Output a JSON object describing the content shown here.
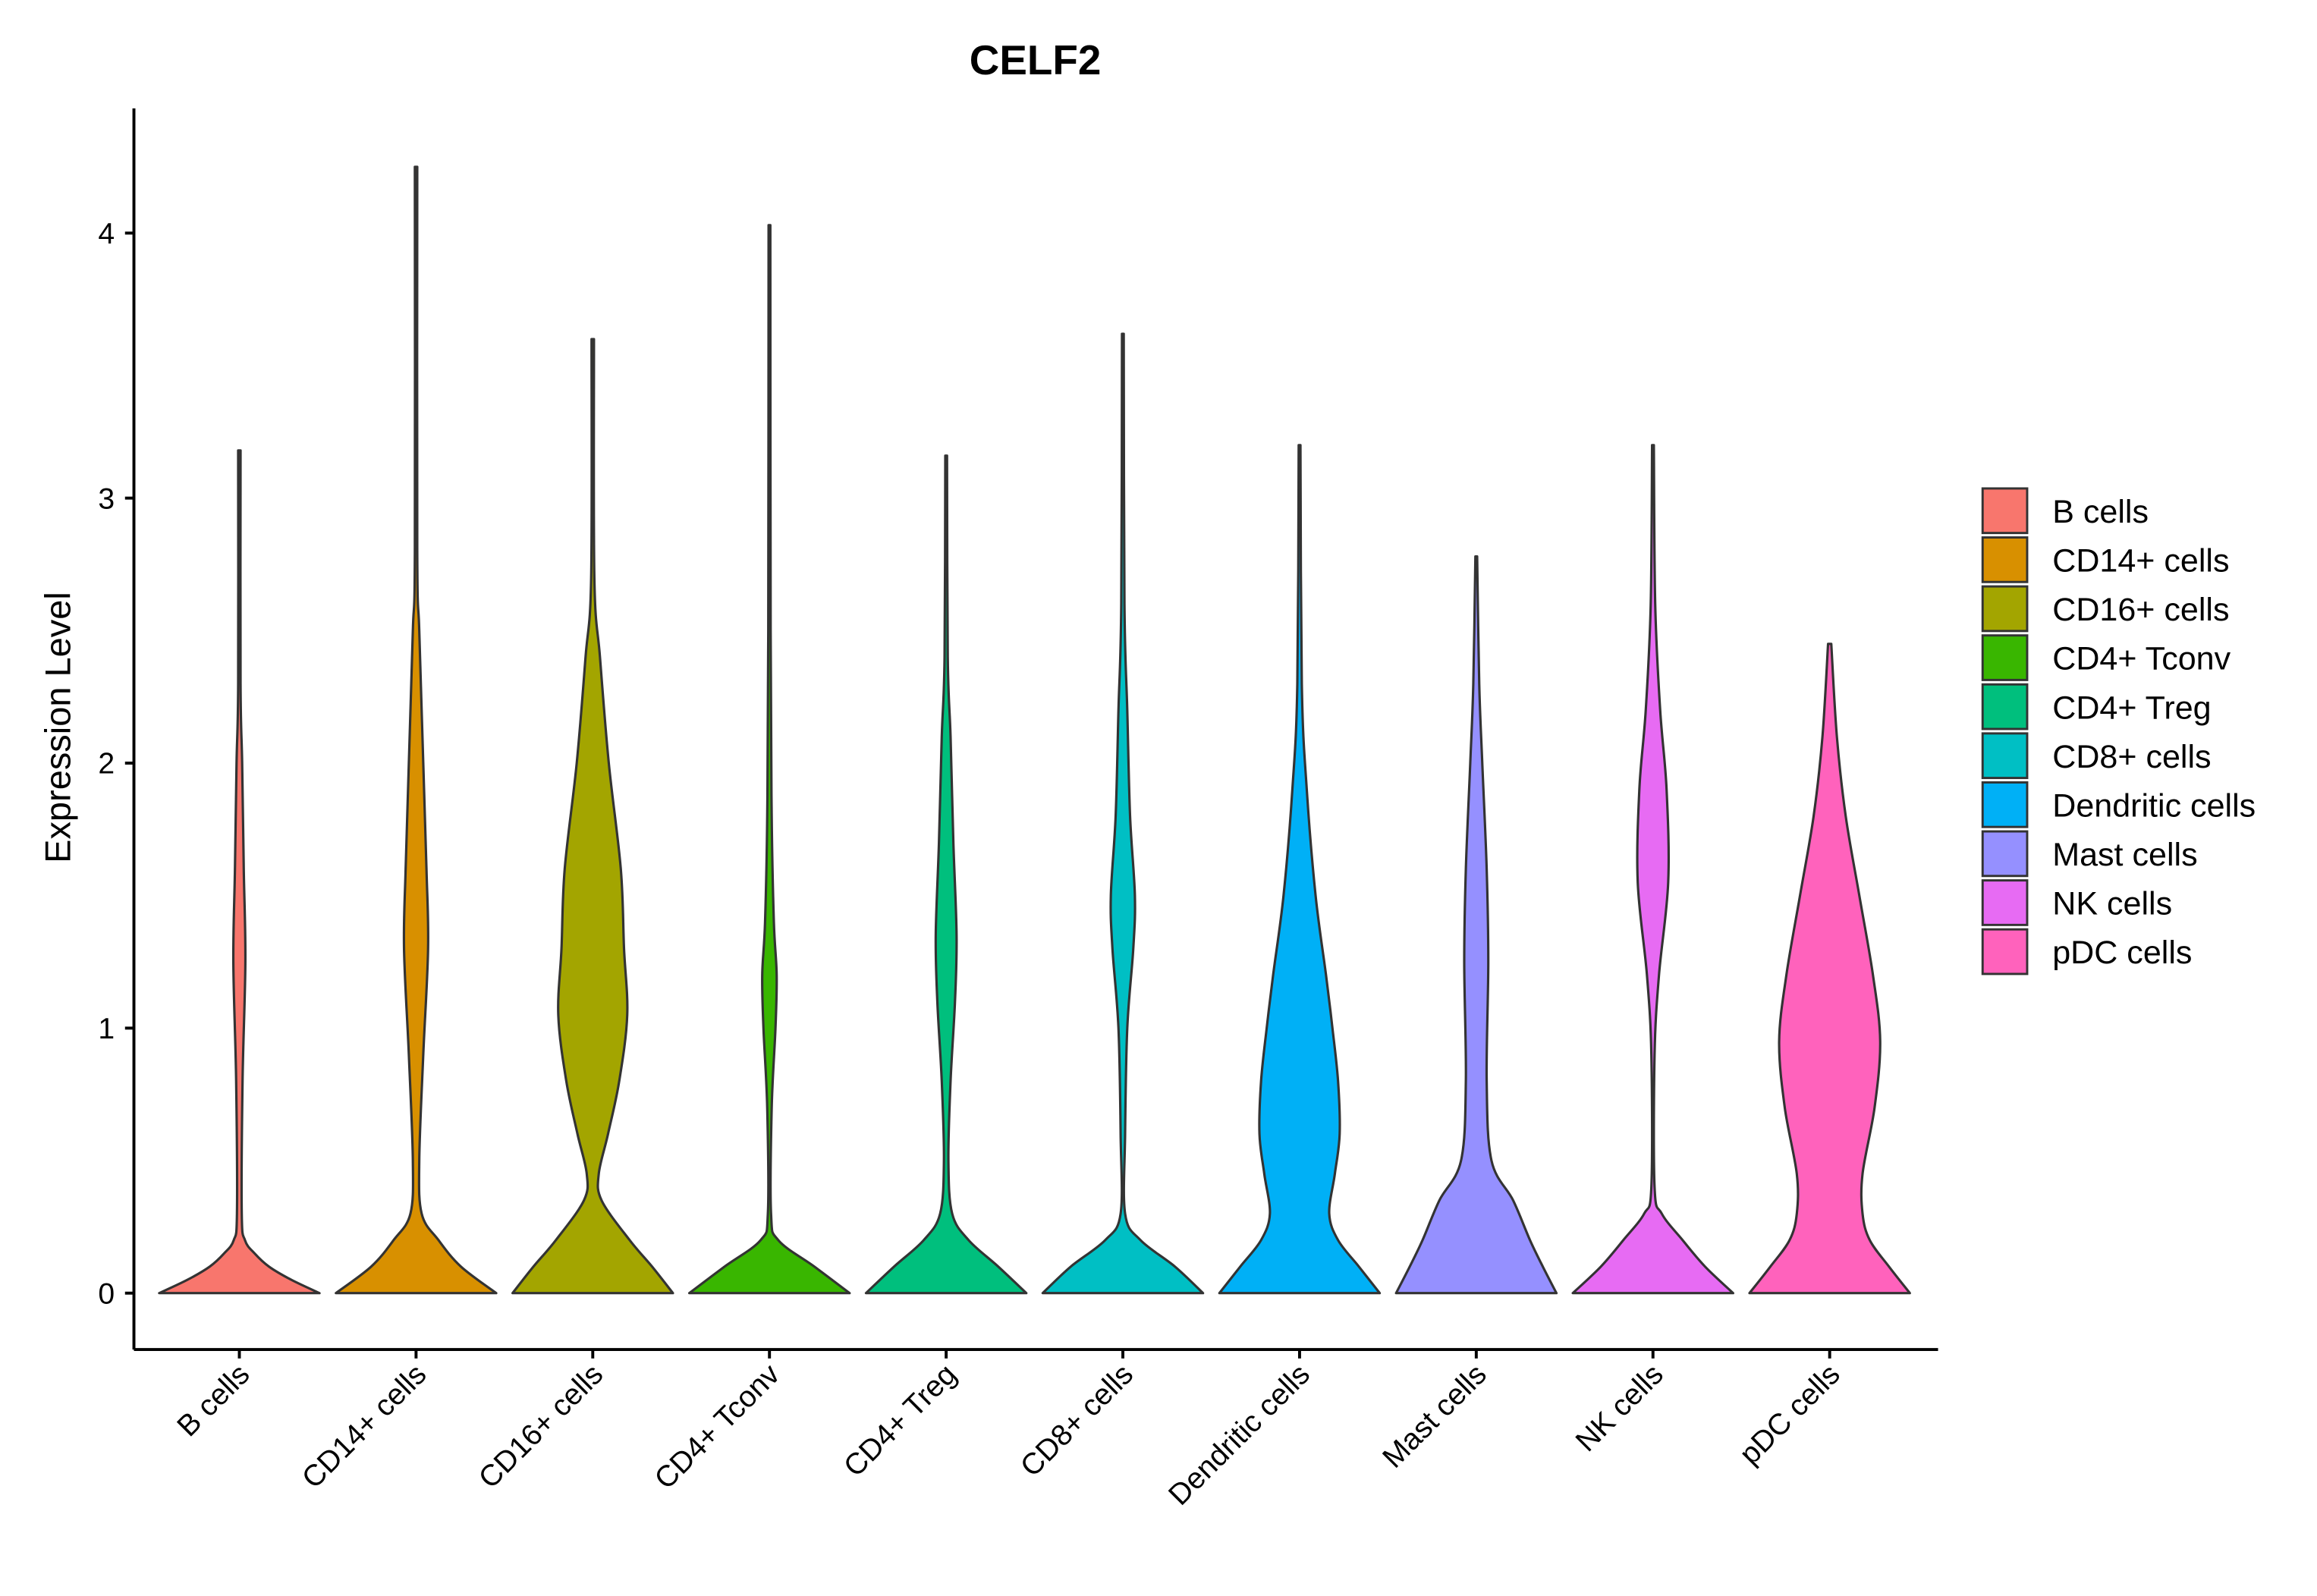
{
  "chart_data": {
    "type": "violin",
    "title": "CELF2",
    "xlabel": "",
    "ylabel": "Expression Level",
    "ylim": [
      -0.21,
      4.47
    ],
    "yticks": [
      0,
      1,
      2,
      3,
      4
    ],
    "ytick_labels": [
      "0",
      "1",
      "2",
      "3",
      "4"
    ],
    "legend_position": "right",
    "grid": false,
    "categories": [
      "B cells",
      "CD14+ cells",
      "CD16+ cells",
      "CD4+ Tconv",
      "CD4+ Treg",
      "CD8+ cells",
      "Dendritic cells",
      "Mast cells",
      "NK cells",
      "pDC cells"
    ],
    "colors": [
      "#F8766D",
      "#D89000",
      "#A3A500",
      "#39B600",
      "#00BF7D",
      "#00BFC4",
      "#00B0F6",
      "#9590FF",
      "#E76BF3",
      "#FF62BC"
    ],
    "series": [
      {
        "name": "B cells",
        "max": 3.18,
        "density": [
          [
            0,
            1
          ],
          [
            0.05,
            0.65
          ],
          [
            0.1,
            0.37
          ],
          [
            0.15,
            0.19
          ],
          [
            0.2,
            0.07
          ],
          [
            0.3,
            0.03
          ],
          [
            0.8,
            0.04
          ],
          [
            1.25,
            0.075
          ],
          [
            1.6,
            0.055
          ],
          [
            2.0,
            0.035
          ],
          [
            2.3,
            0.015
          ],
          [
            3.18,
            0.015
          ]
        ]
      },
      {
        "name": "CD14+ cells",
        "max": 4.25,
        "density": [
          [
            0,
            1
          ],
          [
            0.1,
            0.56
          ],
          [
            0.2,
            0.28
          ],
          [
            0.3,
            0.07
          ],
          [
            0.5,
            0.04
          ],
          [
            0.9,
            0.09
          ],
          [
            1.3,
            0.15
          ],
          [
            1.6,
            0.13
          ],
          [
            2.0,
            0.09
          ],
          [
            2.5,
            0.04
          ],
          [
            2.8,
            0.015
          ],
          [
            4.25,
            0.015
          ]
        ]
      },
      {
        "name": "CD16+ cells",
        "max": 3.6,
        "density": [
          [
            0,
            1
          ],
          [
            0.1,
            0.74
          ],
          [
            0.2,
            0.46
          ],
          [
            0.35,
            0.11
          ],
          [
            0.45,
            0.075
          ],
          [
            0.6,
            0.19
          ],
          [
            0.8,
            0.33
          ],
          [
            1.05,
            0.43
          ],
          [
            1.3,
            0.39
          ],
          [
            1.6,
            0.35
          ],
          [
            2.0,
            0.2
          ],
          [
            2.4,
            0.09
          ],
          [
            2.7,
            0.02
          ],
          [
            3.6,
            0.015
          ]
        ]
      },
      {
        "name": "CD4+ Tconv",
        "max": 4.03,
        "density": [
          [
            0,
            1
          ],
          [
            0.1,
            0.56
          ],
          [
            0.2,
            0.11
          ],
          [
            0.3,
            0.02
          ],
          [
            0.7,
            0.028
          ],
          [
            1.0,
            0.075
          ],
          [
            1.2,
            0.09
          ],
          [
            1.4,
            0.055
          ],
          [
            1.8,
            0.028
          ],
          [
            2.5,
            0.015
          ],
          [
            4.03,
            0.011
          ]
        ]
      },
      {
        "name": "CD4+ Treg",
        "max": 3.16,
        "density": [
          [
            0,
            1
          ],
          [
            0.1,
            0.65
          ],
          [
            0.2,
            0.28
          ],
          [
            0.3,
            0.075
          ],
          [
            0.5,
            0.028
          ],
          [
            0.8,
            0.055
          ],
          [
            1.1,
            0.11
          ],
          [
            1.35,
            0.13
          ],
          [
            1.7,
            0.09
          ],
          [
            2.1,
            0.055
          ],
          [
            2.4,
            0.02
          ],
          [
            3.16,
            0.011
          ]
        ]
      },
      {
        "name": "CD8+ cells",
        "max": 3.62,
        "density": [
          [
            0,
            1
          ],
          [
            0.1,
            0.65
          ],
          [
            0.2,
            0.22
          ],
          [
            0.3,
            0.028
          ],
          [
            0.6,
            0.028
          ],
          [
            1.0,
            0.055
          ],
          [
            1.3,
            0.13
          ],
          [
            1.5,
            0.15
          ],
          [
            1.8,
            0.09
          ],
          [
            2.2,
            0.055
          ],
          [
            2.6,
            0.02
          ],
          [
            3.62,
            0.011
          ]
        ]
      },
      {
        "name": "Dendritic cells",
        "max": 3.2,
        "density": [
          [
            0,
            1
          ],
          [
            0.1,
            0.74
          ],
          [
            0.2,
            0.48
          ],
          [
            0.3,
            0.37
          ],
          [
            0.45,
            0.44
          ],
          [
            0.6,
            0.5
          ],
          [
            0.8,
            0.48
          ],
          [
            1.0,
            0.41
          ],
          [
            1.2,
            0.33
          ],
          [
            1.5,
            0.2
          ],
          [
            1.9,
            0.09
          ],
          [
            2.3,
            0.028
          ],
          [
            3.2,
            0.011
          ]
        ]
      },
      {
        "name": "Mast cells",
        "max": 2.78,
        "density": [
          [
            0,
            1
          ],
          [
            0.1,
            0.83
          ],
          [
            0.2,
            0.67
          ],
          [
            0.35,
            0.46
          ],
          [
            0.5,
            0.19
          ],
          [
            0.8,
            0.13
          ],
          [
            1.25,
            0.15
          ],
          [
            1.6,
            0.13
          ],
          [
            2.0,
            0.075
          ],
          [
            2.3,
            0.037
          ],
          [
            2.78,
            0.011
          ]
        ]
      },
      {
        "name": "NK cells",
        "max": 3.2,
        "density": [
          [
            0,
            1
          ],
          [
            0.1,
            0.65
          ],
          [
            0.2,
            0.37
          ],
          [
            0.3,
            0.11
          ],
          [
            0.4,
            0.02
          ],
          [
            0.9,
            0.02
          ],
          [
            1.2,
            0.075
          ],
          [
            1.55,
            0.19
          ],
          [
            1.9,
            0.17
          ],
          [
            2.2,
            0.09
          ],
          [
            2.6,
            0.028
          ],
          [
            3.2,
            0.011
          ]
        ]
      },
      {
        "name": "pDC cells",
        "max": 2.45,
        "density": [
          [
            0,
            1
          ],
          [
            0.1,
            0.74
          ],
          [
            0.2,
            0.5
          ],
          [
            0.3,
            0.41
          ],
          [
            0.45,
            0.41
          ],
          [
            0.7,
            0.56
          ],
          [
            0.95,
            0.63
          ],
          [
            1.2,
            0.54
          ],
          [
            1.5,
            0.37
          ],
          [
            1.8,
            0.2
          ],
          [
            2.1,
            0.09
          ],
          [
            2.45,
            0.02
          ]
        ]
      }
    ]
  }
}
